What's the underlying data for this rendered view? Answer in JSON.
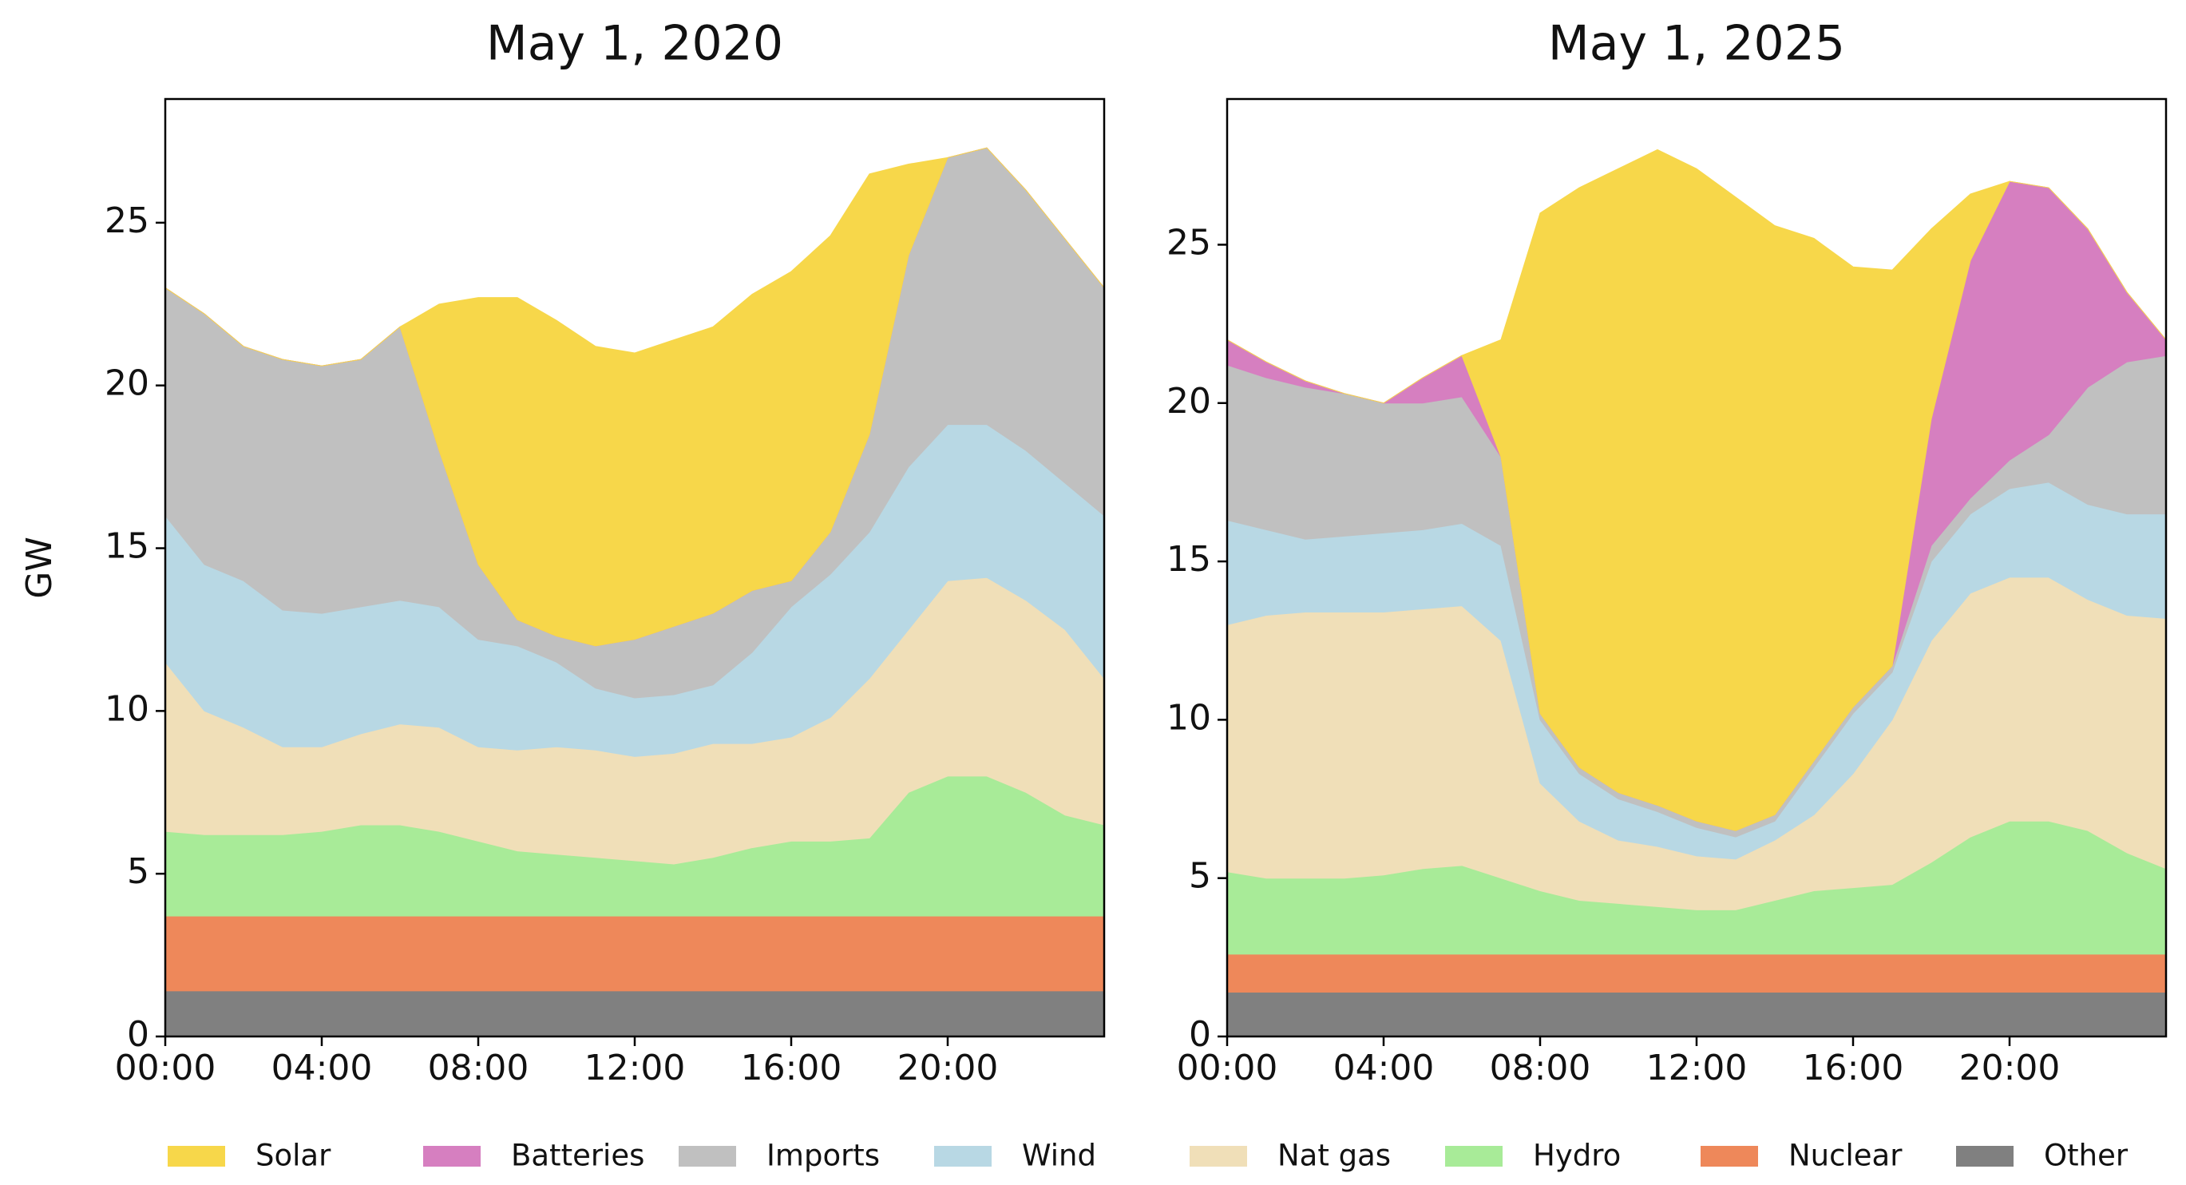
{
  "chart_data": [
    {
      "type": "area",
      "stacked": true,
      "title": "May 1, 2020",
      "ylabel": "GW",
      "x": [
        0,
        1,
        2,
        3,
        4,
        5,
        6,
        7,
        8,
        9,
        10,
        11,
        12,
        13,
        14,
        15,
        16,
        17,
        18,
        19,
        20,
        21,
        22,
        23,
        24
      ],
      "xlim": [
        0,
        24
      ],
      "xticks": [
        {
          "value": 0,
          "label": "00:00"
        },
        {
          "value": 4,
          "label": "04:00"
        },
        {
          "value": 8,
          "label": "08:00"
        },
        {
          "value": 12,
          "label": "12:00"
        },
        {
          "value": 16,
          "label": "16:00"
        },
        {
          "value": 20,
          "label": "20:00"
        }
      ],
      "ylim": [
        0,
        28.8
      ],
      "yticks": [
        0,
        5,
        10,
        15,
        20,
        25
      ],
      "series": [
        {
          "name": "Solar",
          "color": "#f7d74a",
          "values": [
            0,
            0,
            0,
            0,
            0,
            0,
            0,
            4.5,
            8.2,
            9.9,
            9.7,
            9.2,
            8.8,
            8.8,
            8.8,
            9.1,
            9.5,
            9.1,
            8.0,
            2.8,
            0,
            0,
            0,
            0,
            0
          ]
        },
        {
          "name": "Batteries",
          "color": "#d67fc0",
          "values": [
            0,
            0,
            0,
            0,
            0,
            0,
            0,
            0,
            0,
            0,
            0,
            0,
            0,
            0,
            0,
            0,
            0,
            0,
            0,
            0,
            0,
            0,
            0,
            0,
            0
          ]
        },
        {
          "name": "Imports",
          "color": "#c0c0c0",
          "values": [
            7.0,
            7.7,
            7.2,
            7.7,
            7.6,
            7.6,
            8.4,
            4.8,
            2.3,
            0.8,
            0.8,
            1.3,
            1.8,
            2.1,
            2.2,
            1.9,
            0.8,
            1.3,
            3.0,
            6.5,
            8.2,
            8.5,
            8.0,
            7.5,
            7.0
          ]
        },
        {
          "name": "Wind",
          "color": "#b8d8e4",
          "values": [
            4.5,
            4.5,
            4.5,
            4.2,
            4.1,
            3.9,
            3.8,
            3.7,
            3.3,
            3.2,
            2.6,
            1.9,
            1.8,
            1.8,
            1.8,
            2.8,
            4.0,
            4.4,
            4.5,
            5.0,
            4.8,
            4.7,
            4.6,
            4.5,
            5.0
          ]
        },
        {
          "name": "Nat gas",
          "color": "#f0dfb8",
          "values": [
            5.2,
            3.8,
            3.3,
            2.7,
            2.6,
            2.8,
            3.1,
            3.2,
            2.9,
            3.1,
            3.3,
            3.3,
            3.2,
            3.4,
            3.5,
            3.2,
            3.2,
            3.8,
            4.9,
            5.0,
            6.0,
            6.1,
            5.9,
            5.7,
            4.5
          ]
        },
        {
          "name": "Hydro",
          "color": "#a8eb98",
          "values": [
            2.6,
            2.5,
            2.5,
            2.5,
            2.6,
            2.8,
            2.8,
            2.6,
            2.3,
            2.0,
            1.9,
            1.8,
            1.7,
            1.6,
            1.8,
            2.1,
            2.3,
            2.3,
            2.4,
            3.8,
            4.3,
            4.3,
            3.8,
            3.1,
            2.8
          ]
        },
        {
          "name": "Nuclear",
          "color": "#ee885a",
          "values": [
            2.3,
            2.3,
            2.3,
            2.3,
            2.3,
            2.3,
            2.3,
            2.3,
            2.3,
            2.3,
            2.3,
            2.3,
            2.3,
            2.3,
            2.3,
            2.3,
            2.3,
            2.3,
            2.3,
            2.3,
            2.3,
            2.3,
            2.3,
            2.3,
            2.3
          ]
        },
        {
          "name": "Other",
          "color": "#808080",
          "values": [
            1.4,
            1.4,
            1.4,
            1.4,
            1.4,
            1.4,
            1.4,
            1.4,
            1.4,
            1.4,
            1.4,
            1.4,
            1.4,
            1.4,
            1.4,
            1.4,
            1.4,
            1.4,
            1.4,
            1.4,
            1.4,
            1.4,
            1.4,
            1.4,
            1.4
          ]
        }
      ]
    },
    {
      "type": "area",
      "stacked": true,
      "title": "May 1, 2025",
      "x": [
        0,
        1,
        2,
        3,
        4,
        5,
        6,
        7,
        8,
        9,
        10,
        11,
        12,
        13,
        14,
        15,
        16,
        17,
        18,
        19,
        20,
        21,
        22,
        23,
        24
      ],
      "xlim": [
        0,
        24
      ],
      "xticks": [
        {
          "value": 0,
          "label": "00:00"
        },
        {
          "value": 4,
          "label": "04:00"
        },
        {
          "value": 8,
          "label": "08:00"
        },
        {
          "value": 12,
          "label": "12:00"
        },
        {
          "value": 16,
          "label": "16:00"
        },
        {
          "value": 20,
          "label": "20:00"
        }
      ],
      "ylim": [
        0,
        29.6
      ],
      "yticks": [
        0,
        5,
        10,
        15,
        20,
        25
      ],
      "series": [
        {
          "name": "Solar",
          "color": "#f7d74a",
          "values": [
            0,
            0,
            0,
            0,
            0,
            0,
            0,
            3.7,
            15.8,
            18.3,
            19.7,
            20.7,
            20.6,
            20.0,
            18.6,
            16.5,
            13.9,
            12.5,
            6.0,
            2.1,
            0,
            0,
            0,
            0,
            0
          ]
        },
        {
          "name": "Batteries",
          "color": "#d67fc0",
          "values": [
            0.8,
            0.5,
            0.2,
            0,
            0,
            0.8,
            1.3,
            0,
            0,
            0,
            0,
            0,
            0,
            0,
            0,
            0,
            0,
            0,
            4.0,
            7.5,
            8.8,
            7.8,
            5.0,
            2.2,
            0.5
          ]
        },
        {
          "name": "Imports",
          "color": "#c0c0c0",
          "values": [
            4.9,
            4.8,
            4.8,
            4.5,
            4.1,
            4.0,
            4.0,
            2.8,
            0.2,
            0.2,
            0.2,
            0.2,
            0.2,
            0.2,
            0.2,
            0.2,
            0.2,
            0.2,
            0.5,
            0.5,
            0.9,
            1.5,
            3.7,
            4.8,
            5.0
          ]
        },
        {
          "name": "Wind",
          "color": "#b8d8e4",
          "values": [
            3.3,
            2.7,
            2.3,
            2.4,
            2.5,
            2.5,
            2.6,
            3.0,
            2.0,
            1.5,
            1.3,
            1.1,
            0.9,
            0.7,
            0.6,
            1.5,
            1.9,
            1.5,
            2.5,
            2.5,
            2.8,
            3.0,
            3.0,
            3.2,
            3.3
          ]
        },
        {
          "name": "Nat gas",
          "color": "#f0dfb8",
          "values": [
            7.8,
            8.3,
            8.4,
            8.4,
            8.3,
            8.2,
            8.2,
            7.5,
            3.4,
            2.5,
            2.0,
            1.9,
            1.7,
            1.6,
            1.9,
            2.4,
            3.6,
            5.2,
            7.0,
            7.7,
            7.7,
            7.7,
            7.3,
            7.5,
            7.9
          ]
        },
        {
          "name": "Hydro",
          "color": "#a8eb98",
          "values": [
            2.6,
            2.4,
            2.4,
            2.4,
            2.5,
            2.7,
            2.8,
            2.4,
            2.0,
            1.7,
            1.6,
            1.5,
            1.4,
            1.4,
            1.7,
            2.0,
            2.1,
            2.2,
            2.9,
            3.7,
            4.2,
            4.2,
            3.9,
            3.2,
            2.7
          ]
        },
        {
          "name": "Nuclear",
          "color": "#ee885a",
          "values": [
            1.2,
            1.2,
            1.2,
            1.2,
            1.2,
            1.2,
            1.2,
            1.2,
            1.2,
            1.2,
            1.2,
            1.2,
            1.2,
            1.2,
            1.2,
            1.2,
            1.2,
            1.2,
            1.2,
            1.2,
            1.2,
            1.2,
            1.2,
            1.2,
            1.2
          ]
        },
        {
          "name": "Other",
          "color": "#808080",
          "values": [
            1.4,
            1.4,
            1.4,
            1.4,
            1.4,
            1.4,
            1.4,
            1.4,
            1.4,
            1.4,
            1.4,
            1.4,
            1.4,
            1.4,
            1.4,
            1.4,
            1.4,
            1.4,
            1.4,
            1.4,
            1.4,
            1.4,
            1.4,
            1.4,
            1.4
          ]
        }
      ]
    }
  ]
}
